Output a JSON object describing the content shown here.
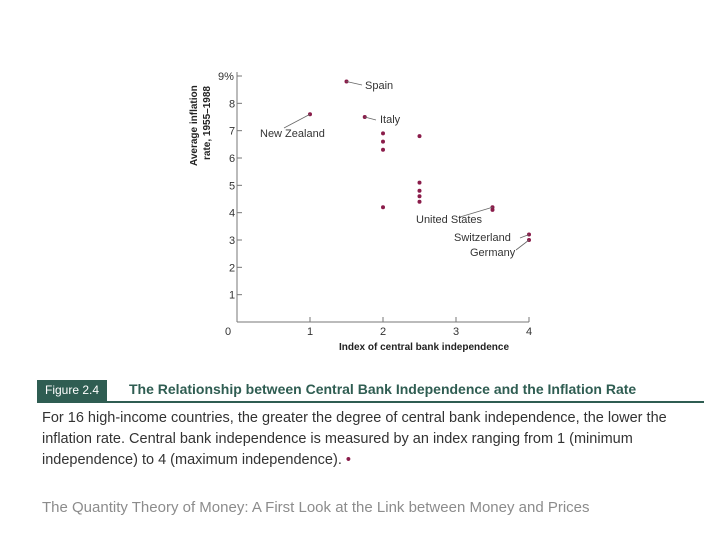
{
  "chart_data": {
    "type": "scatter",
    "ylabel_line1": "Average inflation",
    "ylabel_line2": "rate, 1955–1988",
    "xlabel": "Index of central bank independence",
    "xlim": [
      0,
      4
    ],
    "ylim": [
      0,
      9
    ],
    "x_ticks": [
      "0",
      "1",
      "2",
      "3",
      "4"
    ],
    "y_ticks": [
      "1",
      "2",
      "3",
      "4",
      "5",
      "6",
      "7",
      "8",
      "9%"
    ],
    "grid": false,
    "point_color": "#8a1c4a",
    "points": [
      {
        "x": 1.0,
        "y": 7.6
      },
      {
        "x": 1.5,
        "y": 8.8
      },
      {
        "x": 1.75,
        "y": 7.5
      },
      {
        "x": 2.0,
        "y": 6.9
      },
      {
        "x": 2.0,
        "y": 6.6
      },
      {
        "x": 2.0,
        "y": 6.3
      },
      {
        "x": 2.0,
        "y": 4.2
      },
      {
        "x": 2.5,
        "y": 6.8
      },
      {
        "x": 2.5,
        "y": 5.1
      },
      {
        "x": 2.5,
        "y": 4.8
      },
      {
        "x": 2.5,
        "y": 4.6
      },
      {
        "x": 2.5,
        "y": 4.4
      },
      {
        "x": 3.5,
        "y": 4.2
      },
      {
        "x": 3.5,
        "y": 4.1
      },
      {
        "x": 4.0,
        "y": 3.2
      },
      {
        "x": 4.0,
        "y": 3.0
      }
    ],
    "annotations": [
      {
        "label": "Spain",
        "x": 1.5,
        "y": 8.8
      },
      {
        "label": "Italy",
        "x": 1.75,
        "y": 7.5
      },
      {
        "label": "New Zealand",
        "x": 1.0,
        "y": 7.6
      },
      {
        "label": "United States",
        "x": 3.5,
        "y": 4.2
      },
      {
        "label": "Switzerland",
        "x": 4.0,
        "y": 3.2
      },
      {
        "label": "Germany",
        "x": 4.0,
        "y": 3.0
      }
    ]
  },
  "figure": {
    "tag": "Figure 2.4",
    "title": "The Relationship between Central Bank Independence and the Inflation Rate",
    "caption": "For 16 high-income countries, the greater the degree of central bank independence, the lower the inflation rate. Central bank independence is measured by an index ranging from 1 (minimum independence) to 4 (maximum independence).",
    "caption_end_mark": "•",
    "accent_color": "#2f5d52"
  },
  "footer": {
    "heading": "The Quantity Theory of Money: A First Look at the Link between Money and Prices"
  }
}
